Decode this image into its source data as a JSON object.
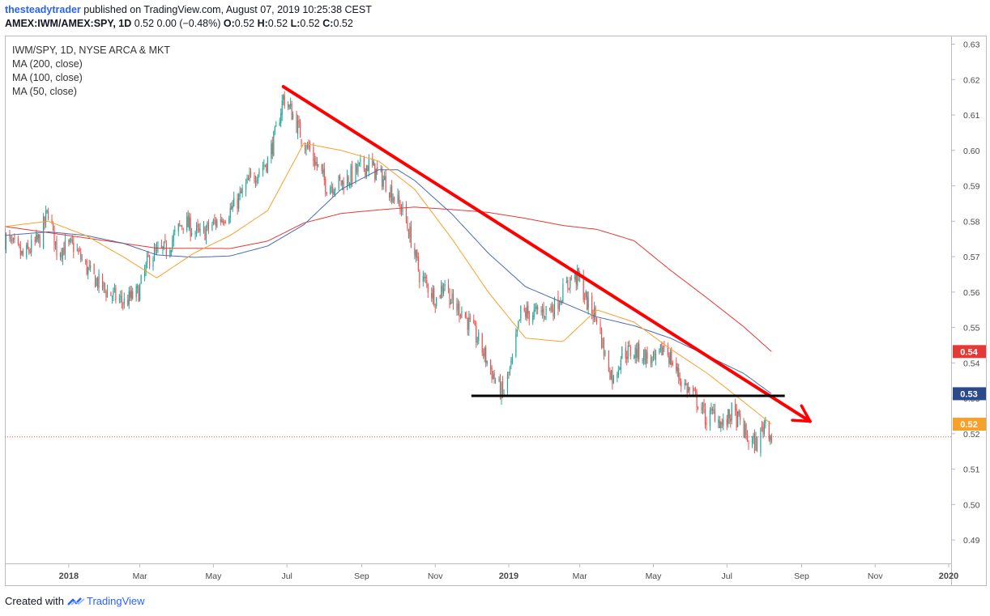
{
  "header": {
    "author": "thesteadytrader",
    "published": " published on TradingView.com, August 07, 2019 10:25:38 CEST",
    "symbol": "AMEX:IWM/AMEX:SPY, 1D",
    "change": " 0.52 0.00 (−0.48%) ",
    "o_label": "O:",
    "o_value": "0.52 ",
    "h_label": "H:",
    "h_value": "0.52 ",
    "l_label": "L:",
    "l_value": "0.52 ",
    "c_label": "C:",
    "c_value": "0.52"
  },
  "legend": {
    "title": "IWM/SPY, 1D, NYSE ARCA & MKT",
    "ma200": "MA (200, close)",
    "ma100": "MA (100, close)",
    "ma50": "MA (50, close)"
  },
  "footer": {
    "created_with": "Created with",
    "brand": "TradingView"
  },
  "colors": {
    "up": "#26a69a",
    "down": "#ef5350",
    "ma200": "#e53935",
    "ma100": "#4a6bb1",
    "ma50": "#f6a12b",
    "trendline": "#ff0000",
    "support": "#000000",
    "price_line": "#ef5350"
  },
  "chart_data": {
    "type": "candlestick",
    "title": "IWM/SPY, 1D, NYSE ARCA & MKT",
    "x_ticks": [
      "2018",
      "Mar",
      "May",
      "Jul",
      "Sep",
      "Nov",
      "2019",
      "Mar",
      "May",
      "Jul",
      "Sep",
      "Nov",
      "2020"
    ],
    "y_ticks": [
      0.63,
      0.62,
      0.61,
      0.6,
      0.59,
      0.58,
      0.57,
      0.56,
      0.55,
      0.54,
      0.53,
      0.52,
      0.51,
      0.5,
      0.49
    ],
    "ylim": [
      0.4834,
      0.6324
    ],
    "x_range": [
      "2017-11-09",
      "2020-01-03"
    ],
    "price_labels": [
      {
        "text": "0.54",
        "value": 0.5432,
        "series": "MA (200, close)"
      },
      {
        "text": "0.53",
        "value": 0.5313,
        "series": "MA (100, close)"
      },
      {
        "text": "0.52",
        "value": 0.5227,
        "series": "MA (50, close)"
      }
    ],
    "last_price": 0.5191,
    "close_anchors": [
      [
        "2017-11-10",
        0.575
      ],
      [
        "2017-11-24",
        0.57
      ],
      [
        "2017-12-08",
        0.575
      ],
      [
        "2017-12-15",
        0.583
      ],
      [
        "2017-12-22",
        0.572
      ],
      [
        "2018-01-05",
        0.573
      ],
      [
        "2018-01-19",
        0.565
      ],
      [
        "2018-02-02",
        0.56
      ],
      [
        "2018-02-16",
        0.557
      ],
      [
        "2018-02-28",
        0.56
      ],
      [
        "2018-03-09",
        0.57
      ],
      [
        "2018-03-23",
        0.572
      ],
      [
        "2018-04-06",
        0.58
      ],
      [
        "2018-04-20",
        0.576
      ],
      [
        "2018-05-04",
        0.58
      ],
      [
        "2018-05-18",
        0.584
      ],
      [
        "2018-06-01",
        0.592
      ],
      [
        "2018-06-15",
        0.597
      ],
      [
        "2018-06-22",
        0.605
      ],
      [
        "2018-06-28",
        0.615
      ],
      [
        "2018-07-06",
        0.61
      ],
      [
        "2018-07-13",
        0.604
      ],
      [
        "2018-07-20",
        0.6
      ],
      [
        "2018-08-03",
        0.59
      ],
      [
        "2018-08-17",
        0.591
      ],
      [
        "2018-08-31",
        0.595
      ],
      [
        "2018-09-07",
        0.596
      ],
      [
        "2018-09-21",
        0.591
      ],
      [
        "2018-10-05",
        0.583
      ],
      [
        "2018-10-12",
        0.575
      ],
      [
        "2018-10-19",
        0.565
      ],
      [
        "2018-11-02",
        0.558
      ],
      [
        "2018-11-09",
        0.563
      ],
      [
        "2018-11-16",
        0.556
      ],
      [
        "2018-11-23",
        0.555
      ],
      [
        "2018-12-07",
        0.546
      ],
      [
        "2018-12-21",
        0.535
      ],
      [
        "2018-12-27",
        0.531
      ],
      [
        "2019-01-04",
        0.54
      ],
      [
        "2019-01-11",
        0.554
      ],
      [
        "2019-01-25",
        0.554
      ],
      [
        "2019-02-08",
        0.556
      ],
      [
        "2019-02-22",
        0.564
      ],
      [
        "2019-02-28",
        0.564
      ],
      [
        "2019-03-08",
        0.556
      ],
      [
        "2019-03-15",
        0.553
      ],
      [
        "2019-03-22",
        0.542
      ],
      [
        "2019-03-29",
        0.535
      ],
      [
        "2019-04-05",
        0.543
      ],
      [
        "2019-04-19",
        0.543
      ],
      [
        "2019-05-03",
        0.54
      ],
      [
        "2019-05-10",
        0.545
      ],
      [
        "2019-05-24",
        0.535
      ],
      [
        "2019-06-07",
        0.529
      ],
      [
        "2019-06-14",
        0.524
      ],
      [
        "2019-06-21",
        0.526
      ],
      [
        "2019-06-28",
        0.522
      ],
      [
        "2019-07-05",
        0.526
      ],
      [
        "2019-07-12",
        0.523
      ],
      [
        "2019-07-19",
        0.518
      ],
      [
        "2019-07-26",
        0.517
      ],
      [
        "2019-08-02",
        0.524
      ],
      [
        "2019-08-07",
        0.519
      ]
    ],
    "ma200_anchors": [
      [
        "2017-11-09",
        0.5785
      ],
      [
        "2018-01-15",
        0.5753
      ],
      [
        "2018-03-15",
        0.5724
      ],
      [
        "2018-05-15",
        0.5723
      ],
      [
        "2018-06-15",
        0.5744
      ],
      [
        "2018-07-15",
        0.5795
      ],
      [
        "2018-08-15",
        0.5822
      ],
      [
        "2018-09-15",
        0.5832
      ],
      [
        "2018-10-15",
        0.584
      ],
      [
        "2018-11-15",
        0.5833
      ],
      [
        "2018-12-15",
        0.5825
      ],
      [
        "2019-01-15",
        0.5808
      ],
      [
        "2019-02-15",
        0.5788
      ],
      [
        "2019-03-15",
        0.5777
      ],
      [
        "2019-04-15",
        0.5745
      ],
      [
        "2019-05-15",
        0.5662
      ],
      [
        "2019-06-15",
        0.5582
      ],
      [
        "2019-07-15",
        0.5502
      ],
      [
        "2019-08-07",
        0.5432
      ]
    ],
    "ma100_anchors": [
      [
        "2017-11-09",
        0.576
      ],
      [
        "2017-12-15",
        0.577
      ],
      [
        "2018-01-15",
        0.576
      ],
      [
        "2018-02-15",
        0.5738
      ],
      [
        "2018-03-15",
        0.5705
      ],
      [
        "2018-04-15",
        0.5698
      ],
      [
        "2018-05-15",
        0.5702
      ],
      [
        "2018-06-15",
        0.573
      ],
      [
        "2018-07-15",
        0.579
      ],
      [
        "2018-08-15",
        0.589
      ],
      [
        "2018-09-15",
        0.5945
      ],
      [
        "2018-10-01",
        0.5945
      ],
      [
        "2018-10-15",
        0.5915
      ],
      [
        "2018-11-15",
        0.582
      ],
      [
        "2018-12-15",
        0.571
      ],
      [
        "2019-01-15",
        0.5615
      ],
      [
        "2019-02-15",
        0.557
      ],
      [
        "2019-03-15",
        0.553
      ],
      [
        "2019-04-15",
        0.5505
      ],
      [
        "2019-05-15",
        0.547
      ],
      [
        "2019-06-15",
        0.542
      ],
      [
        "2019-07-15",
        0.537
      ],
      [
        "2019-08-07",
        0.5313
      ]
    ],
    "ma50_anchors": [
      [
        "2017-11-09",
        0.5785
      ],
      [
        "2017-12-15",
        0.58
      ],
      [
        "2018-01-15",
        0.576
      ],
      [
        "2018-02-15",
        0.57
      ],
      [
        "2018-03-15",
        0.564
      ],
      [
        "2018-04-15",
        0.571
      ],
      [
        "2018-05-15",
        0.576
      ],
      [
        "2018-06-15",
        0.583
      ],
      [
        "2018-07-15",
        0.602
      ],
      [
        "2018-08-15",
        0.6
      ],
      [
        "2018-09-15",
        0.597
      ],
      [
        "2018-10-15",
        0.589
      ],
      [
        "2018-11-15",
        0.575
      ],
      [
        "2018-12-15",
        0.56
      ],
      [
        "2019-01-15",
        0.547
      ],
      [
        "2019-02-15",
        0.546
      ],
      [
        "2019-03-15",
        0.555
      ],
      [
        "2019-04-15",
        0.5515
      ],
      [
        "2019-05-15",
        0.544
      ],
      [
        "2019-06-15",
        0.537
      ],
      [
        "2019-07-15",
        0.529
      ],
      [
        "2019-08-07",
        0.5227
      ]
    ],
    "annotations": [
      {
        "type": "trendline-arrow",
        "from": [
          "2018-06-28",
          0.618
        ],
        "to": [
          "2019-09-08",
          0.5235
        ]
      },
      {
        "type": "horizontal-line",
        "from": [
          "2018-12-01",
          0.5307
        ],
        "to": [
          "2019-08-18",
          0.5307
        ]
      }
    ]
  }
}
